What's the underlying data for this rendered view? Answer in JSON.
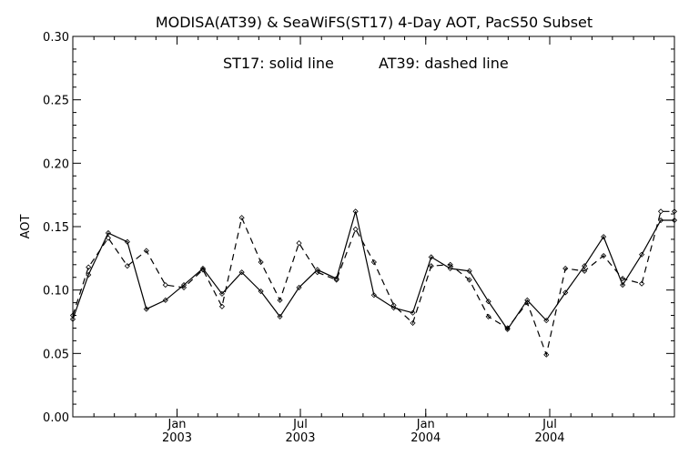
{
  "chart_data": {
    "type": "line",
    "title": "MODISA(AT39) & SeaWiFS(ST17) 4-Day AOT, PacS50 Subset",
    "annotation": {
      "solid": "ST17: solid line",
      "dashed": "AT39: dashed line"
    },
    "ylabel": "AOT",
    "xlabel": "",
    "ylim": [
      0.0,
      0.3
    ],
    "xlim": [
      "2002-08-01",
      "2004-12-31"
    ],
    "yticks": [
      "0.00",
      "0.05",
      "0.10",
      "0.15",
      "0.20",
      "0.25",
      "0.30"
    ],
    "xticks": [
      {
        "date": "2003-01-01",
        "month": "Jan",
        "year": "2003"
      },
      {
        "date": "2003-07-01",
        "month": "Jul",
        "year": "2003"
      },
      {
        "date": "2004-01-01",
        "month": "Jan",
        "year": "2004"
      },
      {
        "date": "2004-07-01",
        "month": "Jul",
        "year": "2004"
      }
    ],
    "grid": false,
    "series": [
      {
        "name": "ST17",
        "style": "solid",
        "x": [
          "2002-08-01",
          "2002-08-24",
          "2002-09-22",
          "2002-10-20",
          "2002-11-17",
          "2002-12-15",
          "2003-01-11",
          "2003-02-08",
          "2003-03-08",
          "2003-04-06",
          "2003-05-04",
          "2003-06-01",
          "2003-06-29",
          "2003-07-26",
          "2003-08-23",
          "2003-09-20",
          "2003-10-17",
          "2003-11-15",
          "2003-12-13",
          "2004-01-09",
          "2004-02-06",
          "2004-03-05",
          "2004-04-02",
          "2004-04-30",
          "2004-05-29",
          "2004-06-26",
          "2004-07-24",
          "2004-08-21",
          "2004-09-18",
          "2004-10-16",
          "2004-11-13",
          "2004-12-11",
          "2004-12-31"
        ],
        "y": [
          0.077,
          0.112,
          0.145,
          0.138,
          0.085,
          0.092,
          0.104,
          0.117,
          0.097,
          0.114,
          0.099,
          0.079,
          0.102,
          0.116,
          0.109,
          0.162,
          0.096,
          0.086,
          0.082,
          0.126,
          0.117,
          0.115,
          0.091,
          0.069,
          0.092,
          0.076,
          0.098,
          0.119,
          0.142,
          0.104,
          0.128,
          0.155,
          0.155
        ]
      },
      {
        "name": "AT39",
        "style": "dashed",
        "x": [
          "2002-08-01",
          "2002-08-24",
          "2002-09-22",
          "2002-10-20",
          "2002-11-17",
          "2002-12-15",
          "2003-01-11",
          "2003-02-08",
          "2003-03-08",
          "2003-04-06",
          "2003-05-04",
          "2003-06-01",
          "2003-06-29",
          "2003-07-26",
          "2003-08-23",
          "2003-09-20",
          "2003-10-17",
          "2003-11-15",
          "2003-12-13",
          "2004-01-09",
          "2004-02-06",
          "2004-03-05",
          "2004-04-02",
          "2004-04-30",
          "2004-05-29",
          "2004-06-26",
          "2004-07-24",
          "2004-08-21",
          "2004-09-18",
          "2004-10-16",
          "2004-11-13",
          "2004-12-11",
          "2004-12-31"
        ],
        "y": [
          0.08,
          0.118,
          0.141,
          0.119,
          0.131,
          0.104,
          0.102,
          0.116,
          0.087,
          0.157,
          0.122,
          0.092,
          0.137,
          0.114,
          0.108,
          0.148,
          0.122,
          0.088,
          0.074,
          0.119,
          0.12,
          0.108,
          0.079,
          0.07,
          0.09,
          0.049,
          0.117,
          0.115,
          0.127,
          0.109,
          0.105,
          0.162,
          0.162
        ]
      }
    ]
  }
}
